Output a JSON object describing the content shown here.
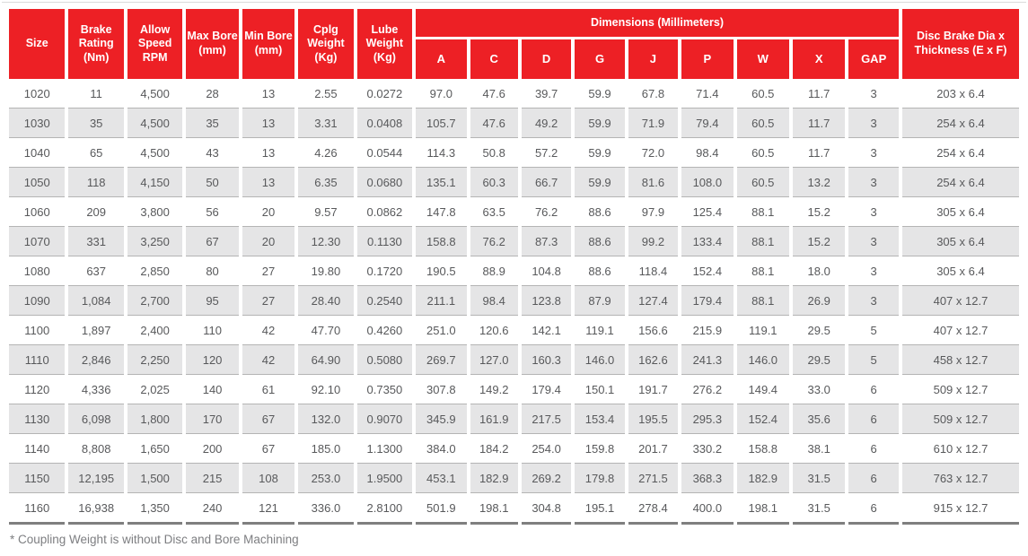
{
  "colors": {
    "header_red": "#ed2025",
    "header_text": "#ffffff",
    "row_alt_bg": "#e5e5e6",
    "row_border": "#b4b4b4",
    "table_end_border": "#7f7f7f",
    "data_text": "#58595b",
    "footnote_text": "#7d7e81"
  },
  "table": {
    "header": {
      "size": "Size",
      "brake_rating": "Brake Rating (Nm)",
      "allow_speed": "Allow Speed RPM",
      "max_bore": "Max Bore (mm)",
      "min_bore": "Min Bore (mm)",
      "cplg_weight": "Cplg Weight (Kg)",
      "lube_weight": "Lube Weight (Kg)",
      "dimensions_group": "Dimensions (Millimeters)",
      "dim_a": "A",
      "dim_c": "C",
      "dim_d": "D",
      "dim_g": "G",
      "dim_j": "J",
      "dim_p": "P",
      "dim_w": "W",
      "dim_x": "X",
      "dim_gap": "GAP",
      "disc_brake": "Disc Brake Dia x Thickness (E x F)"
    },
    "column_keys": [
      "size",
      "brake_rating_nm",
      "allow_speed_rpm",
      "max_bore_mm",
      "min_bore_mm",
      "cplg_weight_kg",
      "lube_weight_kg",
      "dim_a",
      "dim_c",
      "dim_d",
      "dim_g",
      "dim_j",
      "dim_p",
      "dim_w",
      "dim_x",
      "gap",
      "disc_brake_dia_x_thickness"
    ],
    "rows": [
      [
        "1020",
        "11",
        "4,500",
        "28",
        "13",
        "2.55",
        "0.0272",
        "97.0",
        "47.6",
        "39.7",
        "59.9",
        "67.8",
        "71.4",
        "60.5",
        "11.7",
        "3",
        "203 x 6.4"
      ],
      [
        "1030",
        "35",
        "4,500",
        "35",
        "13",
        "3.31",
        "0.0408",
        "105.7",
        "47.6",
        "49.2",
        "59.9",
        "71.9",
        "79.4",
        "60.5",
        "11.7",
        "3",
        "254 x 6.4"
      ],
      [
        "1040",
        "65",
        "4,500",
        "43",
        "13",
        "4.26",
        "0.0544",
        "114.3",
        "50.8",
        "57.2",
        "59.9",
        "72.0",
        "98.4",
        "60.5",
        "11.7",
        "3",
        "254 x 6.4"
      ],
      [
        "1050",
        "118",
        "4,150",
        "50",
        "13",
        "6.35",
        "0.0680",
        "135.1",
        "60.3",
        "66.7",
        "59.9",
        "81.6",
        "108.0",
        "60.5",
        "13.2",
        "3",
        "254 x 6.4"
      ],
      [
        "1060",
        "209",
        "3,800",
        "56",
        "20",
        "9.57",
        "0.0862",
        "147.8",
        "63.5",
        "76.2",
        "88.6",
        "97.9",
        "125.4",
        "88.1",
        "15.2",
        "3",
        "305 x 6.4"
      ],
      [
        "1070",
        "331",
        "3,250",
        "67",
        "20",
        "12.30",
        "0.1130",
        "158.8",
        "76.2",
        "87.3",
        "88.6",
        "99.2",
        "133.4",
        "88.1",
        "15.2",
        "3",
        "305 x 6.4"
      ],
      [
        "1080",
        "637",
        "2,850",
        "80",
        "27",
        "19.80",
        "0.1720",
        "190.5",
        "88.9",
        "104.8",
        "88.6",
        "118.4",
        "152.4",
        "88.1",
        "18.0",
        "3",
        "305 x 6.4"
      ],
      [
        "1090",
        "1,084",
        "2,700",
        "95",
        "27",
        "28.40",
        "0.2540",
        "211.1",
        "98.4",
        "123.8",
        "87.9",
        "127.4",
        "179.4",
        "88.1",
        "26.9",
        "3",
        "407 x 12.7"
      ],
      [
        "1100",
        "1,897",
        "2,400",
        "110",
        "42",
        "47.70",
        "0.4260",
        "251.0",
        "120.6",
        "142.1",
        "119.1",
        "156.6",
        "215.9",
        "119.1",
        "29.5",
        "5",
        "407 x 12.7"
      ],
      [
        "1110",
        "2,846",
        "2,250",
        "120",
        "42",
        "64.90",
        "0.5080",
        "269.7",
        "127.0",
        "160.3",
        "146.0",
        "162.6",
        "241.3",
        "146.0",
        "29.5",
        "5",
        "458 x 12.7"
      ],
      [
        "1120",
        "4,336",
        "2,025",
        "140",
        "61",
        "92.10",
        "0.7350",
        "307.8",
        "149.2",
        "179.4",
        "150.1",
        "191.7",
        "276.2",
        "149.4",
        "33.0",
        "6",
        "509 x 12.7"
      ],
      [
        "1130",
        "6,098",
        "1,800",
        "170",
        "67",
        "132.0",
        "0.9070",
        "345.9",
        "161.9",
        "217.5",
        "153.4",
        "195.5",
        "295.3",
        "152.4",
        "35.6",
        "6",
        "509 x 12.7"
      ],
      [
        "1140",
        "8,808",
        "1,650",
        "200",
        "67",
        "185.0",
        "1.1300",
        "384.0",
        "184.2",
        "254.0",
        "159.8",
        "201.7",
        "330.2",
        "158.8",
        "38.1",
        "6",
        "610 x 12.7"
      ],
      [
        "1150",
        "12,195",
        "1,500",
        "215",
        "108",
        "253.0",
        "1.9500",
        "453.1",
        "182.9",
        "269.2",
        "179.8",
        "271.5",
        "368.3",
        "182.9",
        "31.5",
        "6",
        "763 x 12.7"
      ],
      [
        "1160",
        "16,938",
        "1,350",
        "240",
        "121",
        "336.0",
        "2.8100",
        "501.9",
        "198.1",
        "304.8",
        "195.1",
        "278.4",
        "400.0",
        "198.1",
        "31.5",
        "6",
        "915 x 12.7"
      ]
    ],
    "footnote": "* Coupling Weight is without Disc and Bore Machining"
  }
}
